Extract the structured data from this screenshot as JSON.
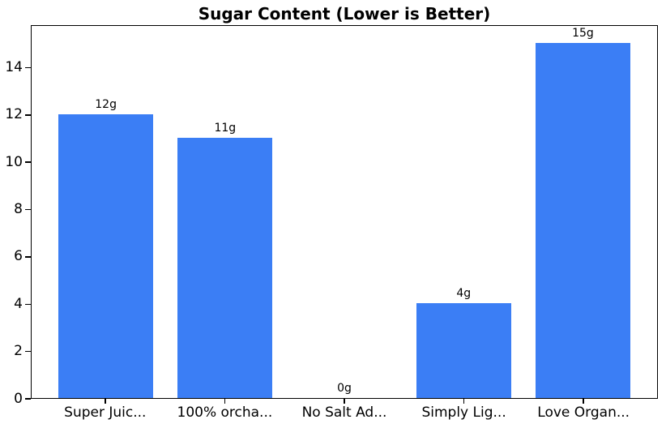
{
  "chart_data": {
    "type": "bar",
    "title": "Sugar Content (Lower is Better)",
    "categories": [
      "Super Juic...",
      "100% orcha...",
      "No Salt Ad...",
      "Simply Lig...",
      "Love Organ..."
    ],
    "values": [
      12,
      11,
      0,
      4,
      15
    ],
    "bar_labels": [
      "12g",
      "11g",
      "0g",
      "4g",
      "15g"
    ],
    "unit": "g",
    "xlabel": "",
    "ylabel": "",
    "ylim": [
      0,
      15.8
    ],
    "yticks": [
      0,
      2,
      4,
      6,
      8,
      10,
      12,
      14
    ],
    "grid": false,
    "legend": false,
    "bar_color": "#3b7ef5",
    "axis_color": "#000000",
    "text_color": "#000000",
    "background_color": "#ffffff"
  }
}
